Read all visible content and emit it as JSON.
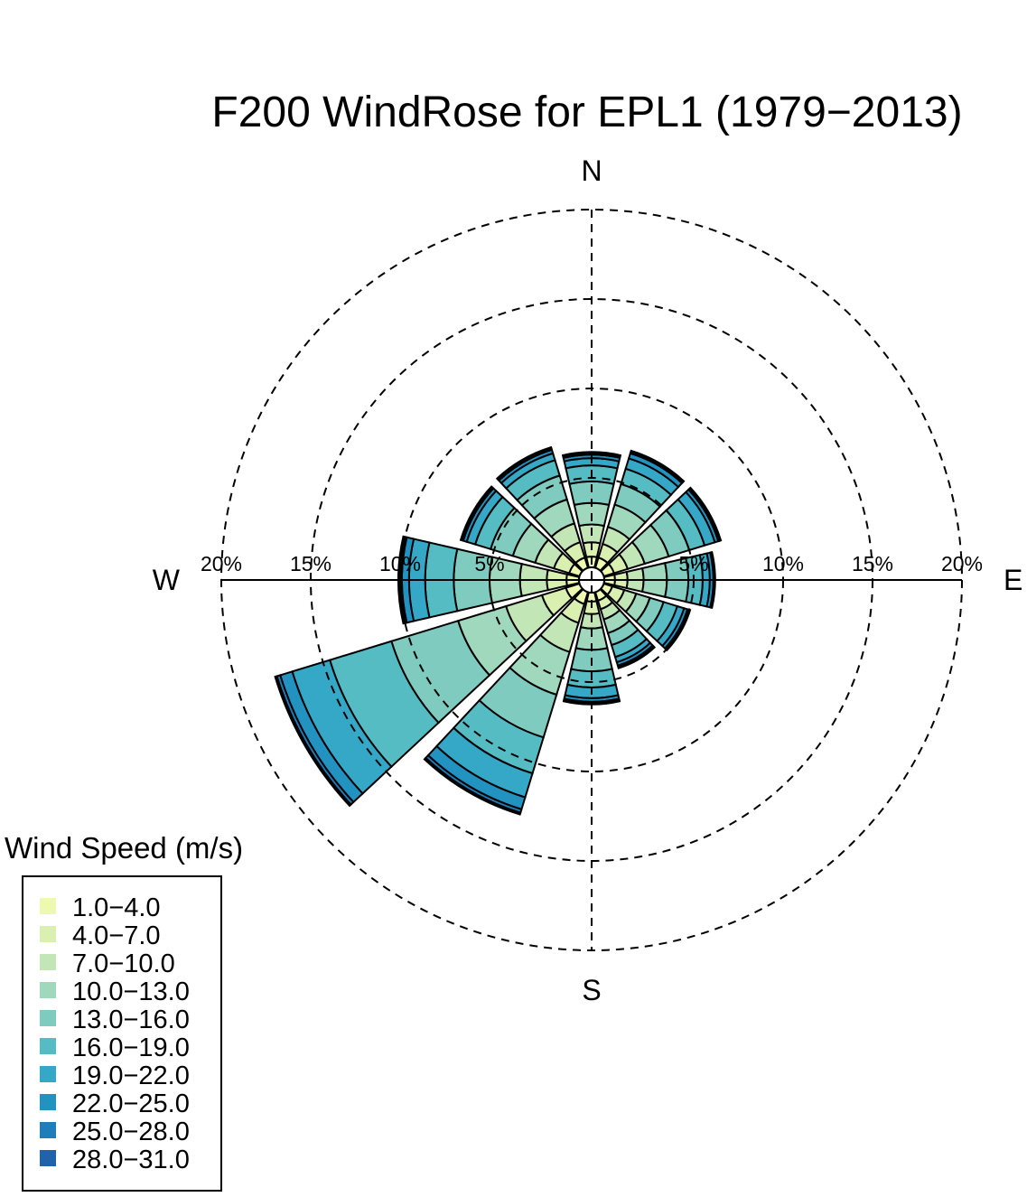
{
  "chart_data": {
    "type": "windrose",
    "title": "F200 WindRose for EPL1 (1979−2013)",
    "compass_labels": {
      "north": "N",
      "east": "E",
      "south": "S",
      "west": "W"
    },
    "rings": [
      {
        "value": 5,
        "label": "5%"
      },
      {
        "value": 10,
        "label": "10%"
      },
      {
        "value": 15,
        "label": "15%"
      },
      {
        "value": 20,
        "label": "20%"
      }
    ],
    "rmax": 20,
    "speed_bins": [
      {
        "label": "1.0−4.0",
        "color": "#edf8b1"
      },
      {
        "label": "4.0−7.0",
        "color": "#d9f0b0"
      },
      {
        "label": "7.0−10.0",
        "color": "#c2e6b5"
      },
      {
        "label": "10.0−13.0",
        "color": "#9fd8bc"
      },
      {
        "label": "13.0−16.0",
        "color": "#7fcbbf"
      },
      {
        "label": "16.0−19.0",
        "color": "#56bcc4"
      },
      {
        "label": "19.0−22.0",
        "color": "#36a8c7"
      },
      {
        "label": "22.0−25.0",
        "color": "#2293c1"
      },
      {
        "label": "25.0−28.0",
        "color": "#1f7db9"
      },
      {
        "label": "28.0−31.0",
        "color": "#2262ab"
      }
    ],
    "legend_title": "Wind Speed (m/s)",
    "legend_position": "bottom-left",
    "directions": [
      0,
      30,
      60,
      90,
      120,
      150,
      180,
      210,
      240,
      270,
      300,
      330
    ],
    "cumulative_percent": [
      [
        0.6,
        1.4,
        2.4,
        3.6,
        4.8,
        5.7,
        6.1,
        6.3,
        6.4,
        6.45
      ],
      [
        0.6,
        1.4,
        2.4,
        3.7,
        4.9,
        5.8,
        6.4,
        6.7,
        6.8,
        6.85
      ],
      [
        0.6,
        1.4,
        2.4,
        3.8,
        5.0,
        5.9,
        6.5,
        6.7,
        6.8,
        6.85
      ],
      [
        0.6,
        1.3,
        2.2,
        3.5,
        4.7,
        5.5,
        5.9,
        6.1,
        6.15,
        6.2
      ],
      [
        0.5,
        1.2,
        1.9,
        2.7,
        3.5,
        4.3,
        4.7,
        4.9,
        5.0,
        5.05
      ],
      [
        0.5,
        1.0,
        1.6,
        2.4,
        3.1,
        3.8,
        4.1,
        4.3,
        4.4,
        4.45
      ],
      [
        0.5,
        1.2,
        2.0,
        3.2,
        4.4,
        5.3,
        5.9,
        6.1,
        6.2,
        6.25
      ],
      [
        0.7,
        1.8,
        3.5,
        6.0,
        8.5,
        10.6,
        12.0,
        12.7,
        12.9,
        13.0
      ],
      [
        0.8,
        2.2,
        4.3,
        7.1,
        11.0,
        14.6,
        16.8,
        17.5,
        17.7,
        17.8
      ],
      [
        0.7,
        1.8,
        3.3,
        5.0,
        7.0,
        8.6,
        9.5,
        9.9,
        10.0,
        10.1
      ],
      [
        0.6,
        1.5,
        2.6,
        3.9,
        5.2,
        6.1,
        6.6,
        6.8,
        6.9,
        6.95
      ],
      [
        0.6,
        1.5,
        2.6,
        4.0,
        5.4,
        6.3,
        6.7,
        6.9,
        7.0,
        7.05
      ]
    ]
  }
}
